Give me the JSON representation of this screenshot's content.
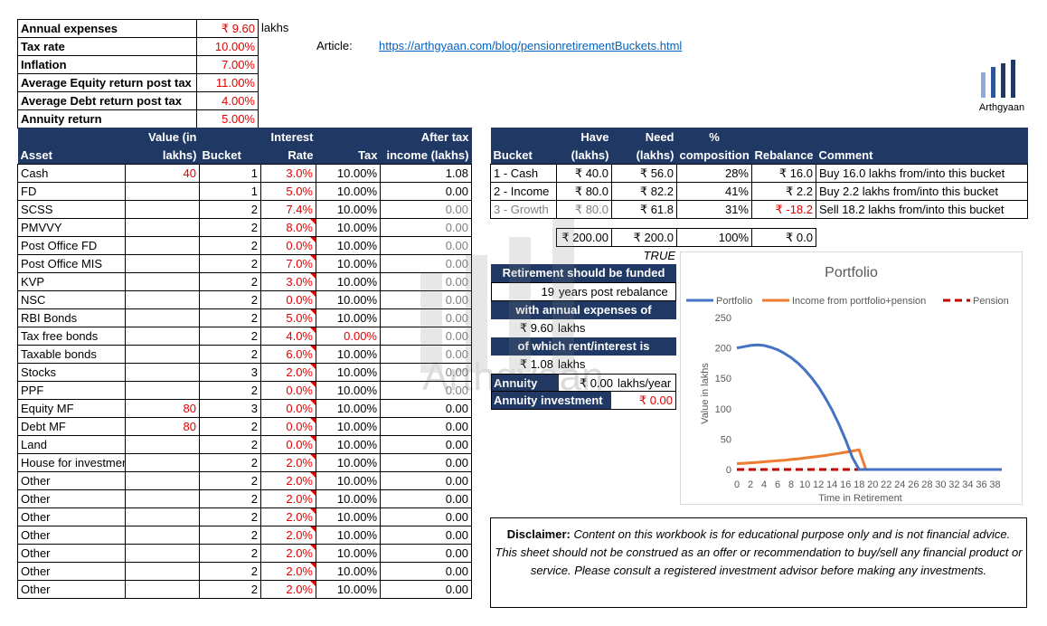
{
  "summary": [
    {
      "label": "Annual expenses",
      "value": "₹ 9.60"
    },
    {
      "label": "Tax rate",
      "value": "10.00%"
    },
    {
      "label": "Inflation",
      "value": "7.00%"
    },
    {
      "label": "Average Equity return post tax",
      "value": "11.00%"
    },
    {
      "label": "Average Debt return post tax",
      "value": "4.00%"
    },
    {
      "label": "Annuity return",
      "value": "5.00%"
    }
  ],
  "lakhs_unit": "lakhs",
  "article": {
    "label": "Article:",
    "url": "https://arthgyaan.com/blog/pensionretirementBuckets.html"
  },
  "brand": {
    "name": "Arthgyaan",
    "bar_color": "#1f3864",
    "bar_light": "#8faadc"
  },
  "assets": {
    "headers": {
      "asset": "Asset",
      "value_1": "Value (in",
      "value_2": "lakhs)",
      "bucket": "Bucket",
      "rate_1": "Interest",
      "rate_2": "Rate",
      "tax": "Tax",
      "inc_1": "After tax",
      "inc_2": "income (lakhs)"
    },
    "rows": [
      {
        "name": "Cash",
        "value": "40",
        "bucket": "1",
        "rate": "3.0%",
        "tax": "10.00%",
        "income": "1.08"
      },
      {
        "name": "FD",
        "value": "",
        "bucket": "1",
        "rate": "5.0%",
        "tax": "10.00%",
        "income": "0.00"
      },
      {
        "name": "SCSS",
        "value": "",
        "bucket": "2",
        "rate": "7.4%",
        "tax": "10.00%",
        "income": "0.00"
      },
      {
        "name": "PMVVY",
        "value": "",
        "bucket": "2",
        "rate": "8.0%",
        "tax": "10.00%",
        "income": "0.00"
      },
      {
        "name": "Post Office FD",
        "value": "",
        "bucket": "2",
        "rate": "0.0%",
        "tax": "10.00%",
        "income": "0.00"
      },
      {
        "name": "Post Office MIS",
        "value": "",
        "bucket": "2",
        "rate": "7.0%",
        "tax": "10.00%",
        "income": "0.00"
      },
      {
        "name": "KVP",
        "value": "",
        "bucket": "2",
        "rate": "3.0%",
        "tax": "10.00%",
        "income": "0.00"
      },
      {
        "name": "NSC",
        "value": "",
        "bucket": "2",
        "rate": "0.0%",
        "tax": "10.00%",
        "income": "0.00"
      },
      {
        "name": "RBI Bonds",
        "value": "",
        "bucket": "2",
        "rate": "5.0%",
        "tax": "10.00%",
        "income": "0.00"
      },
      {
        "name": "Tax free bonds",
        "value": "",
        "bucket": "2",
        "rate": "4.0%",
        "tax": "0.00%",
        "income": "0.00"
      },
      {
        "name": "Taxable bonds",
        "value": "",
        "bucket": "2",
        "rate": "6.0%",
        "tax": "10.00%",
        "income": "0.00"
      },
      {
        "name": "Stocks",
        "value": "",
        "bucket": "3",
        "rate": "2.0%",
        "tax": "10.00%",
        "income": "0.00"
      },
      {
        "name": "PPF",
        "value": "",
        "bucket": "2",
        "rate": "0.0%",
        "tax": "10.00%",
        "income": "0.00"
      },
      {
        "name": "Equity MF",
        "value": "80",
        "bucket": "3",
        "rate": "0.0%",
        "tax": "10.00%",
        "income": "0.00"
      },
      {
        "name": "Debt MF",
        "value": "80",
        "bucket": "2",
        "rate": "0.0%",
        "tax": "10.00%",
        "income": "0.00"
      },
      {
        "name": "Land",
        "value": "",
        "bucket": "2",
        "rate": "0.0%",
        "tax": "10.00%",
        "income": "0.00"
      },
      {
        "name": "House for investment",
        "value": "",
        "bucket": "2",
        "rate": "2.0%",
        "tax": "10.00%",
        "income": "0.00"
      },
      {
        "name": "Other",
        "value": "",
        "bucket": "2",
        "rate": "2.0%",
        "tax": "10.00%",
        "income": "0.00"
      },
      {
        "name": "Other",
        "value": "",
        "bucket": "2",
        "rate": "2.0%",
        "tax": "10.00%",
        "income": "0.00"
      },
      {
        "name": "Other",
        "value": "",
        "bucket": "2",
        "rate": "2.0%",
        "tax": "10.00%",
        "income": "0.00"
      },
      {
        "name": "Other",
        "value": "",
        "bucket": "2",
        "rate": "2.0%",
        "tax": "10.00%",
        "income": "0.00"
      },
      {
        "name": "Other",
        "value": "",
        "bucket": "2",
        "rate": "2.0%",
        "tax": "10.00%",
        "income": "0.00"
      },
      {
        "name": "Other",
        "value": "",
        "bucket": "2",
        "rate": "2.0%",
        "tax": "10.00%",
        "income": "0.00"
      },
      {
        "name": "Other",
        "value": "",
        "bucket": "2",
        "rate": "2.0%",
        "tax": "10.00%",
        "income": "0.00"
      }
    ]
  },
  "buckets": {
    "headers": {
      "bucket": "Bucket",
      "have_1": "Have",
      "have_2": "(lakhs)",
      "need_1": "Need",
      "need_2": "(lakhs)",
      "comp_1": "%",
      "comp_2": "composition",
      "rebalance": "Rebalance",
      "comment": "Comment"
    },
    "rows": [
      {
        "bucket": "1 - Cash",
        "have": "₹ 40.0",
        "need": "₹ 56.0",
        "comp": "28%",
        "rebalance": "₹ 16.0",
        "comment": "Buy 16.0 lakhs from/into this bucket"
      },
      {
        "bucket": "2 - Income",
        "have": "₹ 80.0",
        "need": "₹ 82.2",
        "comp": "41%",
        "rebalance": "₹ 2.2",
        "comment": "Buy 2.2 lakhs from/into this bucket"
      },
      {
        "bucket": "3 - Growth",
        "have": "₹ 80.0",
        "need": "₹ 61.8",
        "comp": "31%",
        "rebalance": "₹ -18.2",
        "comment": "Sell 18.2 lakhs from/into this bucket"
      }
    ],
    "totals": {
      "have": "₹ 200.00",
      "need": "₹ 200.0",
      "comp": "100%",
      "rebalance": "₹ 0.0"
    }
  },
  "funding": {
    "flag": "TRUE",
    "line1": "Retirement should be funded",
    "years": "19",
    "years_label": "years post rebalance",
    "line3": "with annual expenses of",
    "expenses": "₹ 9.60",
    "expenses_unit": "lakhs",
    "line5": "of which rent/interest is",
    "interest": "₹ 1.08",
    "interest_unit": "lakhs",
    "annuity_label": "Annuity",
    "annuity_value": "₹ 0.00",
    "annuity_unit": "lakhs/year",
    "annuity_inv_label": "Annuity investment",
    "annuity_inv_value": "₹ 0.00"
  },
  "chart_data": {
    "type": "line",
    "title": "Portfolio",
    "ylabel": "Value in lakhs",
    "xlabel": "Time in Retirement",
    "ylim": [
      0,
      250
    ],
    "xlim": [
      0,
      39
    ],
    "yticks": [
      0,
      50,
      100,
      150,
      200,
      250
    ],
    "xticks": [
      0,
      2,
      4,
      6,
      8,
      10,
      12,
      14,
      16,
      18,
      20,
      22,
      24,
      26,
      28,
      30,
      32,
      34,
      36,
      38
    ],
    "legend_position": "top",
    "series": [
      {
        "name": "Portfolio",
        "color": "#4472c4",
        "dash": "",
        "x": [
          0,
          1,
          2,
          3,
          4,
          5,
          6,
          7,
          8,
          9,
          10,
          11,
          12,
          13,
          14,
          15,
          16,
          17,
          18,
          19,
          20,
          21,
          22,
          23,
          24,
          25,
          26,
          27,
          28,
          29,
          30,
          31,
          32,
          33,
          34,
          35,
          36,
          37,
          38,
          39
        ],
        "y": [
          200,
          202,
          204,
          205,
          204,
          201,
          197,
          191,
          184,
          175,
          164,
          151,
          136,
          118,
          98,
          75,
          49,
          20,
          0,
          0,
          0,
          0,
          0,
          0,
          0,
          0,
          0,
          0,
          0,
          0,
          0,
          0,
          0,
          0,
          0,
          0,
          0,
          0,
          0,
          0
        ]
      },
      {
        "name": "Income from portfolio+pension",
        "color": "#ed7d31",
        "dash": "",
        "x": [
          0,
          1,
          2,
          3,
          4,
          5,
          6,
          7,
          8,
          9,
          10,
          11,
          12,
          13,
          14,
          15,
          16,
          17,
          18,
          19,
          20,
          21,
          22,
          23,
          24,
          25,
          26,
          27,
          28,
          29,
          30,
          31,
          32,
          33,
          34,
          35,
          36,
          37,
          38,
          39
        ],
        "y": [
          9.6,
          10.3,
          11.0,
          11.8,
          12.6,
          13.5,
          14.4,
          15.4,
          16.5,
          17.6,
          18.9,
          20.2,
          21.6,
          23.1,
          24.8,
          26.5,
          28.4,
          30.3,
          32.5,
          0,
          0,
          0,
          0,
          0,
          0,
          0,
          0,
          0,
          0,
          0,
          0,
          0,
          0,
          0,
          0,
          0,
          0,
          0,
          0,
          0
        ]
      },
      {
        "name": "Pension",
        "color": "#c00000",
        "dash": "8,5",
        "x": [
          0,
          1,
          2,
          3,
          4,
          5,
          6,
          7,
          8,
          9,
          10,
          11,
          12,
          13,
          14,
          15,
          16,
          17,
          18,
          19,
          20,
          21,
          22,
          23,
          24,
          25,
          26,
          27,
          28,
          29,
          30,
          31,
          32,
          33,
          34,
          35,
          36,
          37,
          38,
          39
        ],
        "y": [
          0,
          0,
          0,
          0,
          0,
          0,
          0,
          0,
          0,
          0,
          0,
          0,
          0,
          0,
          0,
          0,
          0,
          0,
          0,
          0,
          0,
          0,
          0,
          0,
          0,
          0,
          0,
          0,
          0,
          0,
          0,
          0,
          0,
          0,
          0,
          0,
          0,
          0,
          0,
          0
        ]
      }
    ]
  },
  "disclaimer": {
    "label": "Disclaimer:",
    "text": " Content on this workbook is for educational purpose only and is not financial advice. This sheet should not be construed as an offer or recommendation to buy/sell any financial product or service. Please consult a registered investment advisor before making any investments."
  }
}
